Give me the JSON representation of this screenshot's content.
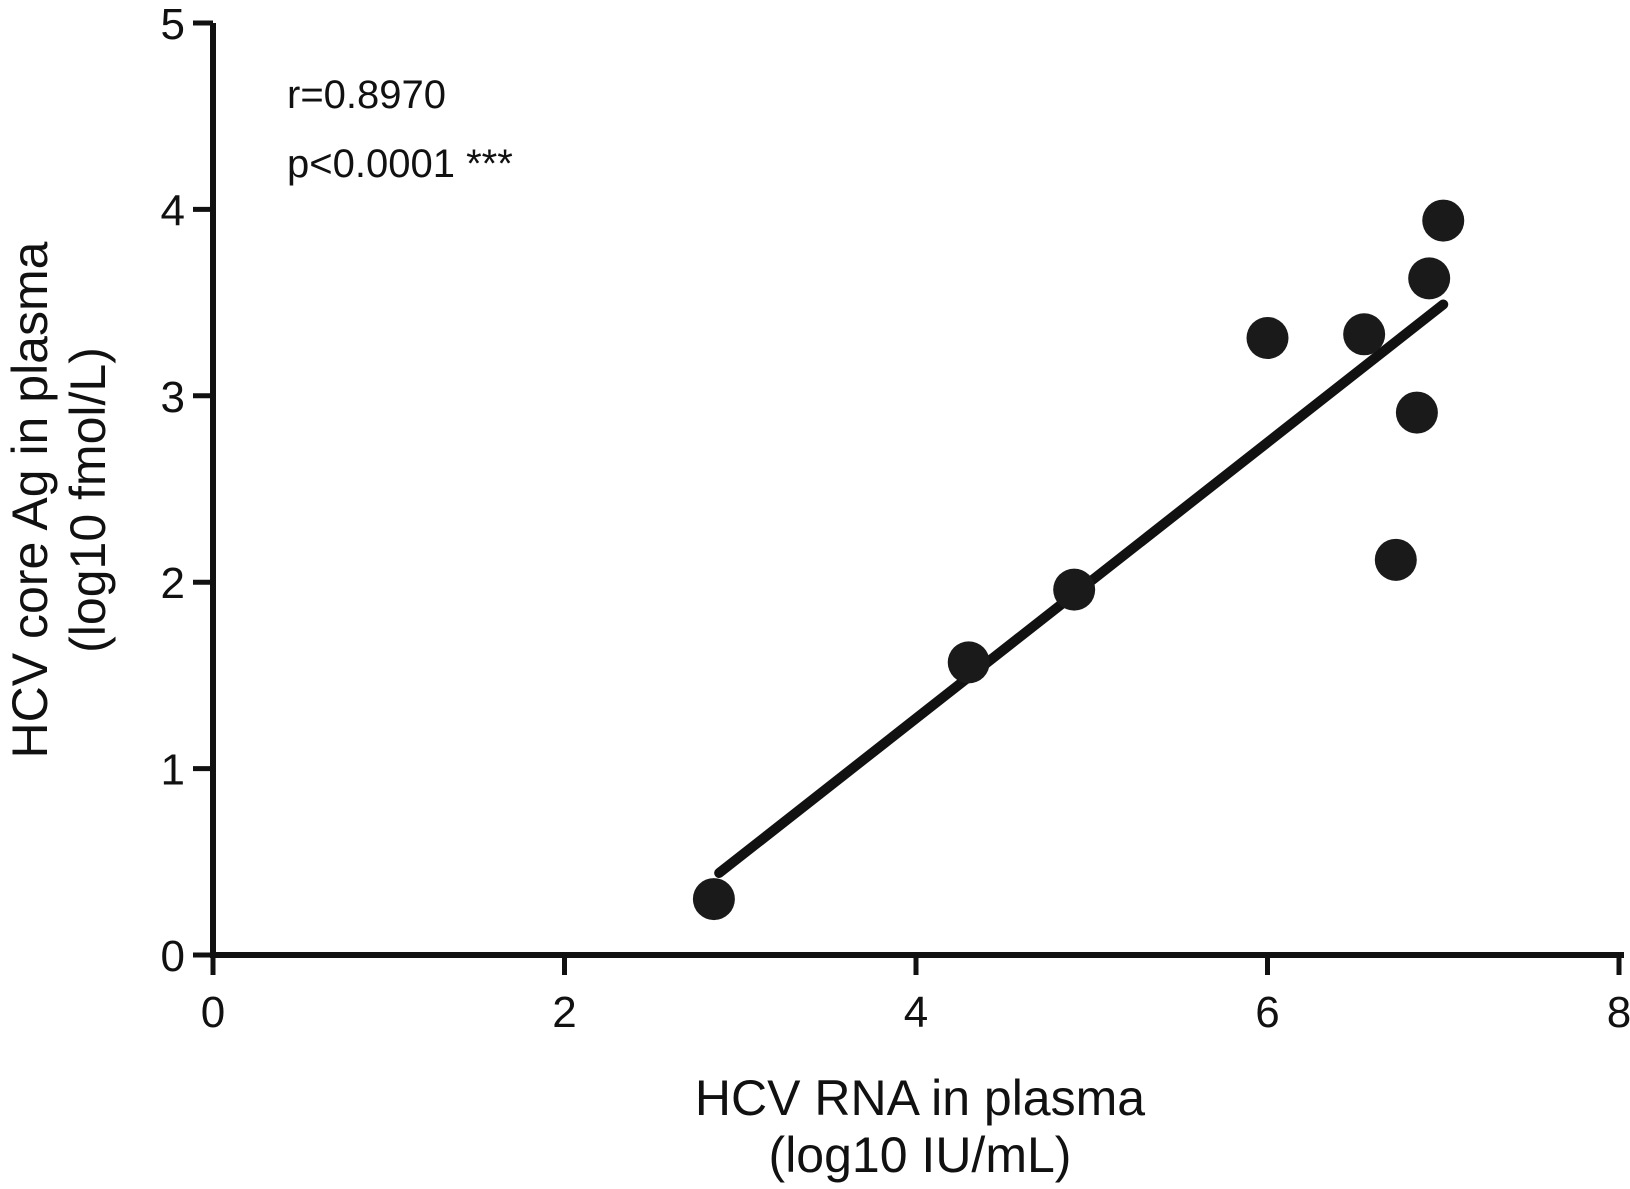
{
  "chart_data": {
    "type": "scatter",
    "title": "",
    "xlabel_line1": "HCV RNA in plasma",
    "xlabel_line2": "(log10 IU/mL)",
    "ylabel_line1": "HCV core Ag in plasma",
    "ylabel_line2": "(log10 fmol/L)",
    "annotation": {
      "r_text": "r=0.8970",
      "p_text": "p<0.0001 ***",
      "r_value": 0.897,
      "p_value": "<0.0001",
      "significance": "***"
    },
    "xlim": [
      0,
      8
    ],
    "ylim": [
      0,
      5
    ],
    "x_ticks": [
      0,
      2,
      4,
      6,
      8
    ],
    "y_ticks": [
      0,
      1,
      2,
      3,
      4,
      5
    ],
    "grid": false,
    "legend": null,
    "points": [
      {
        "x": 2.85,
        "y": 0.3
      },
      {
        "x": 4.3,
        "y": 1.57
      },
      {
        "x": 4.9,
        "y": 1.96
      },
      {
        "x": 6.0,
        "y": 3.31
      },
      {
        "x": 6.55,
        "y": 3.33
      },
      {
        "x": 6.73,
        "y": 2.12
      },
      {
        "x": 6.85,
        "y": 2.91
      },
      {
        "x": 6.92,
        "y": 3.63
      },
      {
        "x": 7.0,
        "y": 3.94
      }
    ],
    "trend_line": {
      "x1": 2.88,
      "y1": 0.44,
      "x2": 7.0,
      "y2": 3.49
    },
    "colors": {
      "ink": "#111111",
      "marker": "#1a1a1a",
      "background": "#ffffff"
    }
  }
}
